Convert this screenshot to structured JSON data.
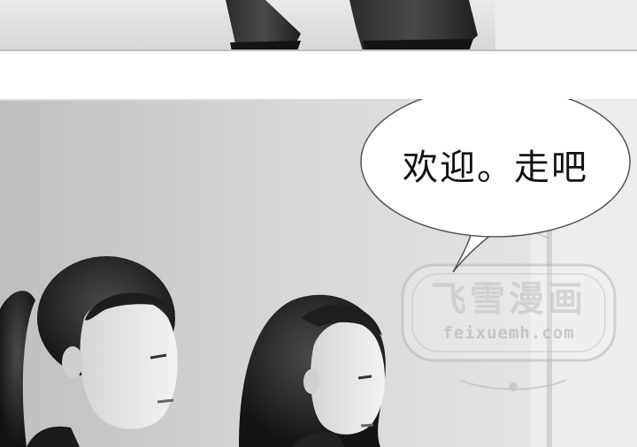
{
  "panels": {
    "top": {
      "description_icon": "legs-closeup-illustration"
    },
    "main": {
      "speech_bubble": {
        "text": "欢迎。走吧"
      },
      "watermark": {
        "title": "飞雪漫画",
        "url": "feixuemh.com",
        "icon": "ornamental-frame"
      }
    }
  },
  "colors": {
    "background": "#ffffff",
    "wall": "#cfcfcf",
    "bubble_fill": "#ffffff",
    "bubble_stroke": "#555555",
    "watermark": "#bdbdbd"
  }
}
